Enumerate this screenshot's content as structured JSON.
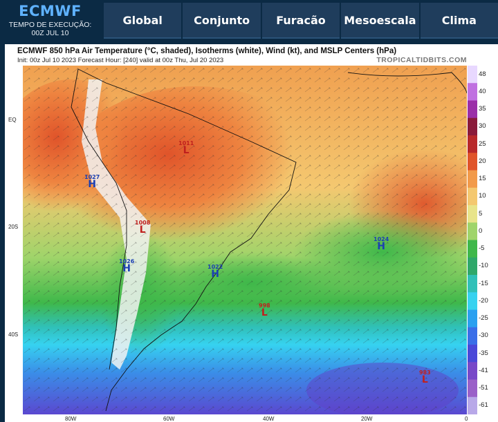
{
  "header": {
    "brand": "ECMWF",
    "run_label": "TEMPO DE EXECUÇÃO:",
    "run_value": "00Z JUL 10",
    "tabs": [
      "Global",
      "Conjunto",
      "Furacão",
      "Mesoescala",
      "Clima"
    ]
  },
  "map": {
    "title": "ECMWF 850 hPa Air Temperature (°C, shaded), Isotherms (white), Wind (kt), and MSLP Centers (hPa)",
    "subtitle": "Init: 00z Jul 10 2023   Forecast Hour: [240]   valid at 00z Thu, Jul 20 2023",
    "credit": "TROPICALTIDBITS.COM",
    "lat_labels": [
      "EQ",
      "20S",
      "40S"
    ],
    "lon_labels": [
      "80W",
      "60W",
      "40W",
      "20W",
      "0"
    ],
    "colorbar_ticks": [
      "48",
      "40",
      "35",
      "30",
      "25",
      "20",
      "15",
      "10",
      "5",
      "0",
      "-5",
      "-10",
      "-15",
      "-20",
      "-25",
      "-30",
      "-35",
      "-41",
      "-51",
      "-61"
    ],
    "colorbar_colors": [
      "#e8d8ff",
      "#c070e0",
      "#9b2fa8",
      "#8a1a3a",
      "#b8282a",
      "#e0542a",
      "#f29a4a",
      "#f4c870",
      "#e8e48a",
      "#9fd46a",
      "#3fb84a",
      "#2fa86a",
      "#30c0b8",
      "#36d2f0",
      "#2aa0f0",
      "#3a6ee8",
      "#4a48d8",
      "#7848c8",
      "#9a60c8",
      "#b8a8e8"
    ],
    "pressure_centers": [
      {
        "type": "L",
        "value": "1011"
      },
      {
        "type": "H",
        "value": "1027"
      },
      {
        "type": "L",
        "value": "1008"
      },
      {
        "type": "H",
        "value": "1026"
      },
      {
        "type": "H",
        "value": "1022"
      },
      {
        "type": "H",
        "value": "1024"
      },
      {
        "type": "L",
        "value": "998"
      },
      {
        "type": "L",
        "value": "983"
      }
    ]
  }
}
